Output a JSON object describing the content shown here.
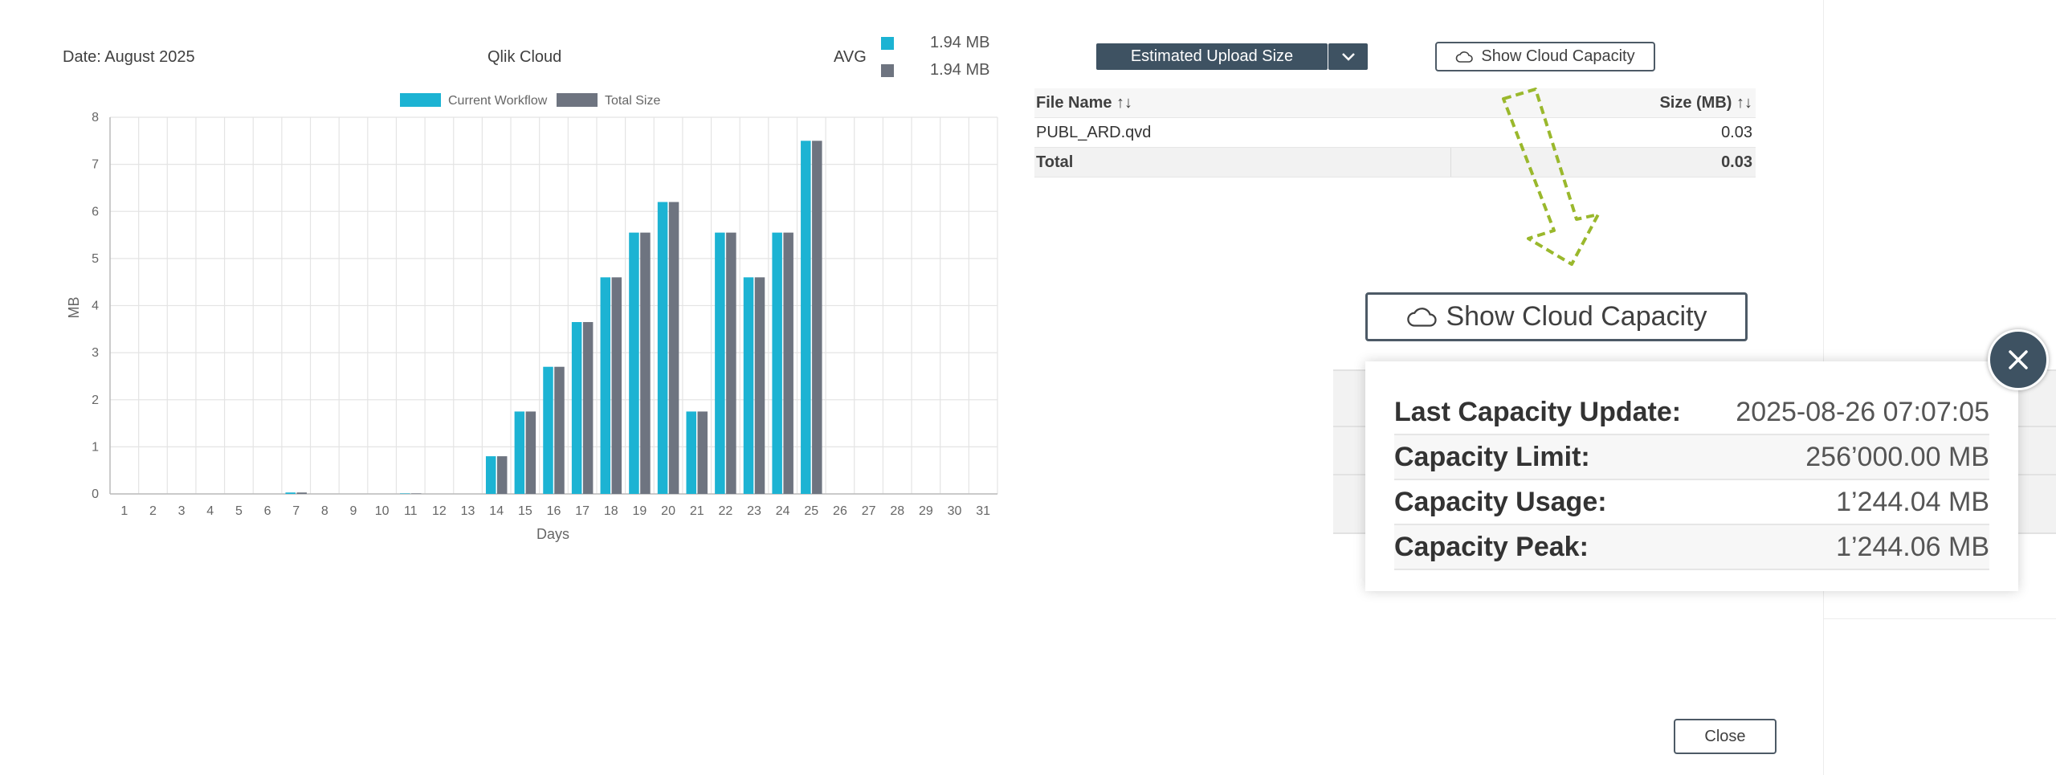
{
  "header": {
    "date": "Date: August 2025",
    "title": "Qlik Cloud",
    "avg_label": "AVG",
    "avg_current": "1.94 MB",
    "avg_total": "1.94 MB"
  },
  "colors": {
    "current": "#1cb3d3",
    "total": "#6e7480",
    "dark": "#3e5262",
    "arrow": "#9ab82c"
  },
  "chart_data": {
    "type": "bar",
    "xlabel": "Days",
    "ylabel": "MB",
    "ylim": [
      0,
      8
    ],
    "yticks": [
      0,
      1,
      2,
      3,
      4,
      5,
      6,
      7,
      8
    ],
    "categories": [
      "1",
      "2",
      "3",
      "4",
      "5",
      "6",
      "7",
      "8",
      "9",
      "10",
      "11",
      "12",
      "13",
      "14",
      "15",
      "16",
      "17",
      "18",
      "19",
      "20",
      "21",
      "22",
      "23",
      "24",
      "25",
      "26",
      "27",
      "28",
      "29",
      "30",
      "31"
    ],
    "series": [
      {
        "name": "Current Workflow",
        "values": [
          0,
          0,
          0,
          0,
          0,
          0,
          0.03,
          0,
          0,
          0,
          0.01,
          0,
          0,
          0.8,
          1.75,
          2.7,
          3.65,
          4.6,
          5.55,
          6.2,
          1.75,
          5.55,
          4.6,
          5.55,
          7.5,
          0,
          0,
          0,
          0,
          0,
          0
        ]
      },
      {
        "name": "Total Size",
        "values": [
          0,
          0,
          0,
          0,
          0,
          0,
          0.03,
          0,
          0,
          0,
          0.01,
          0,
          0,
          0.8,
          1.75,
          2.7,
          3.65,
          4.6,
          5.55,
          6.2,
          1.75,
          5.55,
          4.6,
          5.55,
          7.5,
          0,
          0,
          0,
          0,
          0,
          0
        ]
      }
    ],
    "grid": true,
    "legend": "top-center"
  },
  "toolbar": {
    "estimate_label": "Estimated Upload Size",
    "capacity_label": "Show Cloud Capacity"
  },
  "table": {
    "col_file": "File Name ↑↓",
    "col_size": "Size (MB) ↑↓",
    "rows": [
      {
        "file": "PUBL_ARD.qvd",
        "size": "0.03"
      }
    ],
    "total_label": "Total",
    "total_value": "0.03"
  },
  "zoom_button_label": "Show Cloud Capacity",
  "popup": {
    "rows": [
      {
        "label": "Last Capacity Update:",
        "value": "2025-08-26 07:07:05"
      },
      {
        "label": "Capacity Limit:",
        "value": "256’000.00 MB"
      },
      {
        "label": "Capacity Usage:",
        "value": "1’244.04 MB"
      },
      {
        "label": "Capacity Peak:",
        "value": "1’244.06 MB"
      }
    ]
  },
  "close_label": "Close",
  "icons": {
    "cloud": "cloud-icon",
    "chevron": "chevron-down-icon",
    "close": "close-icon",
    "arrow": "arrow-down-icon"
  }
}
